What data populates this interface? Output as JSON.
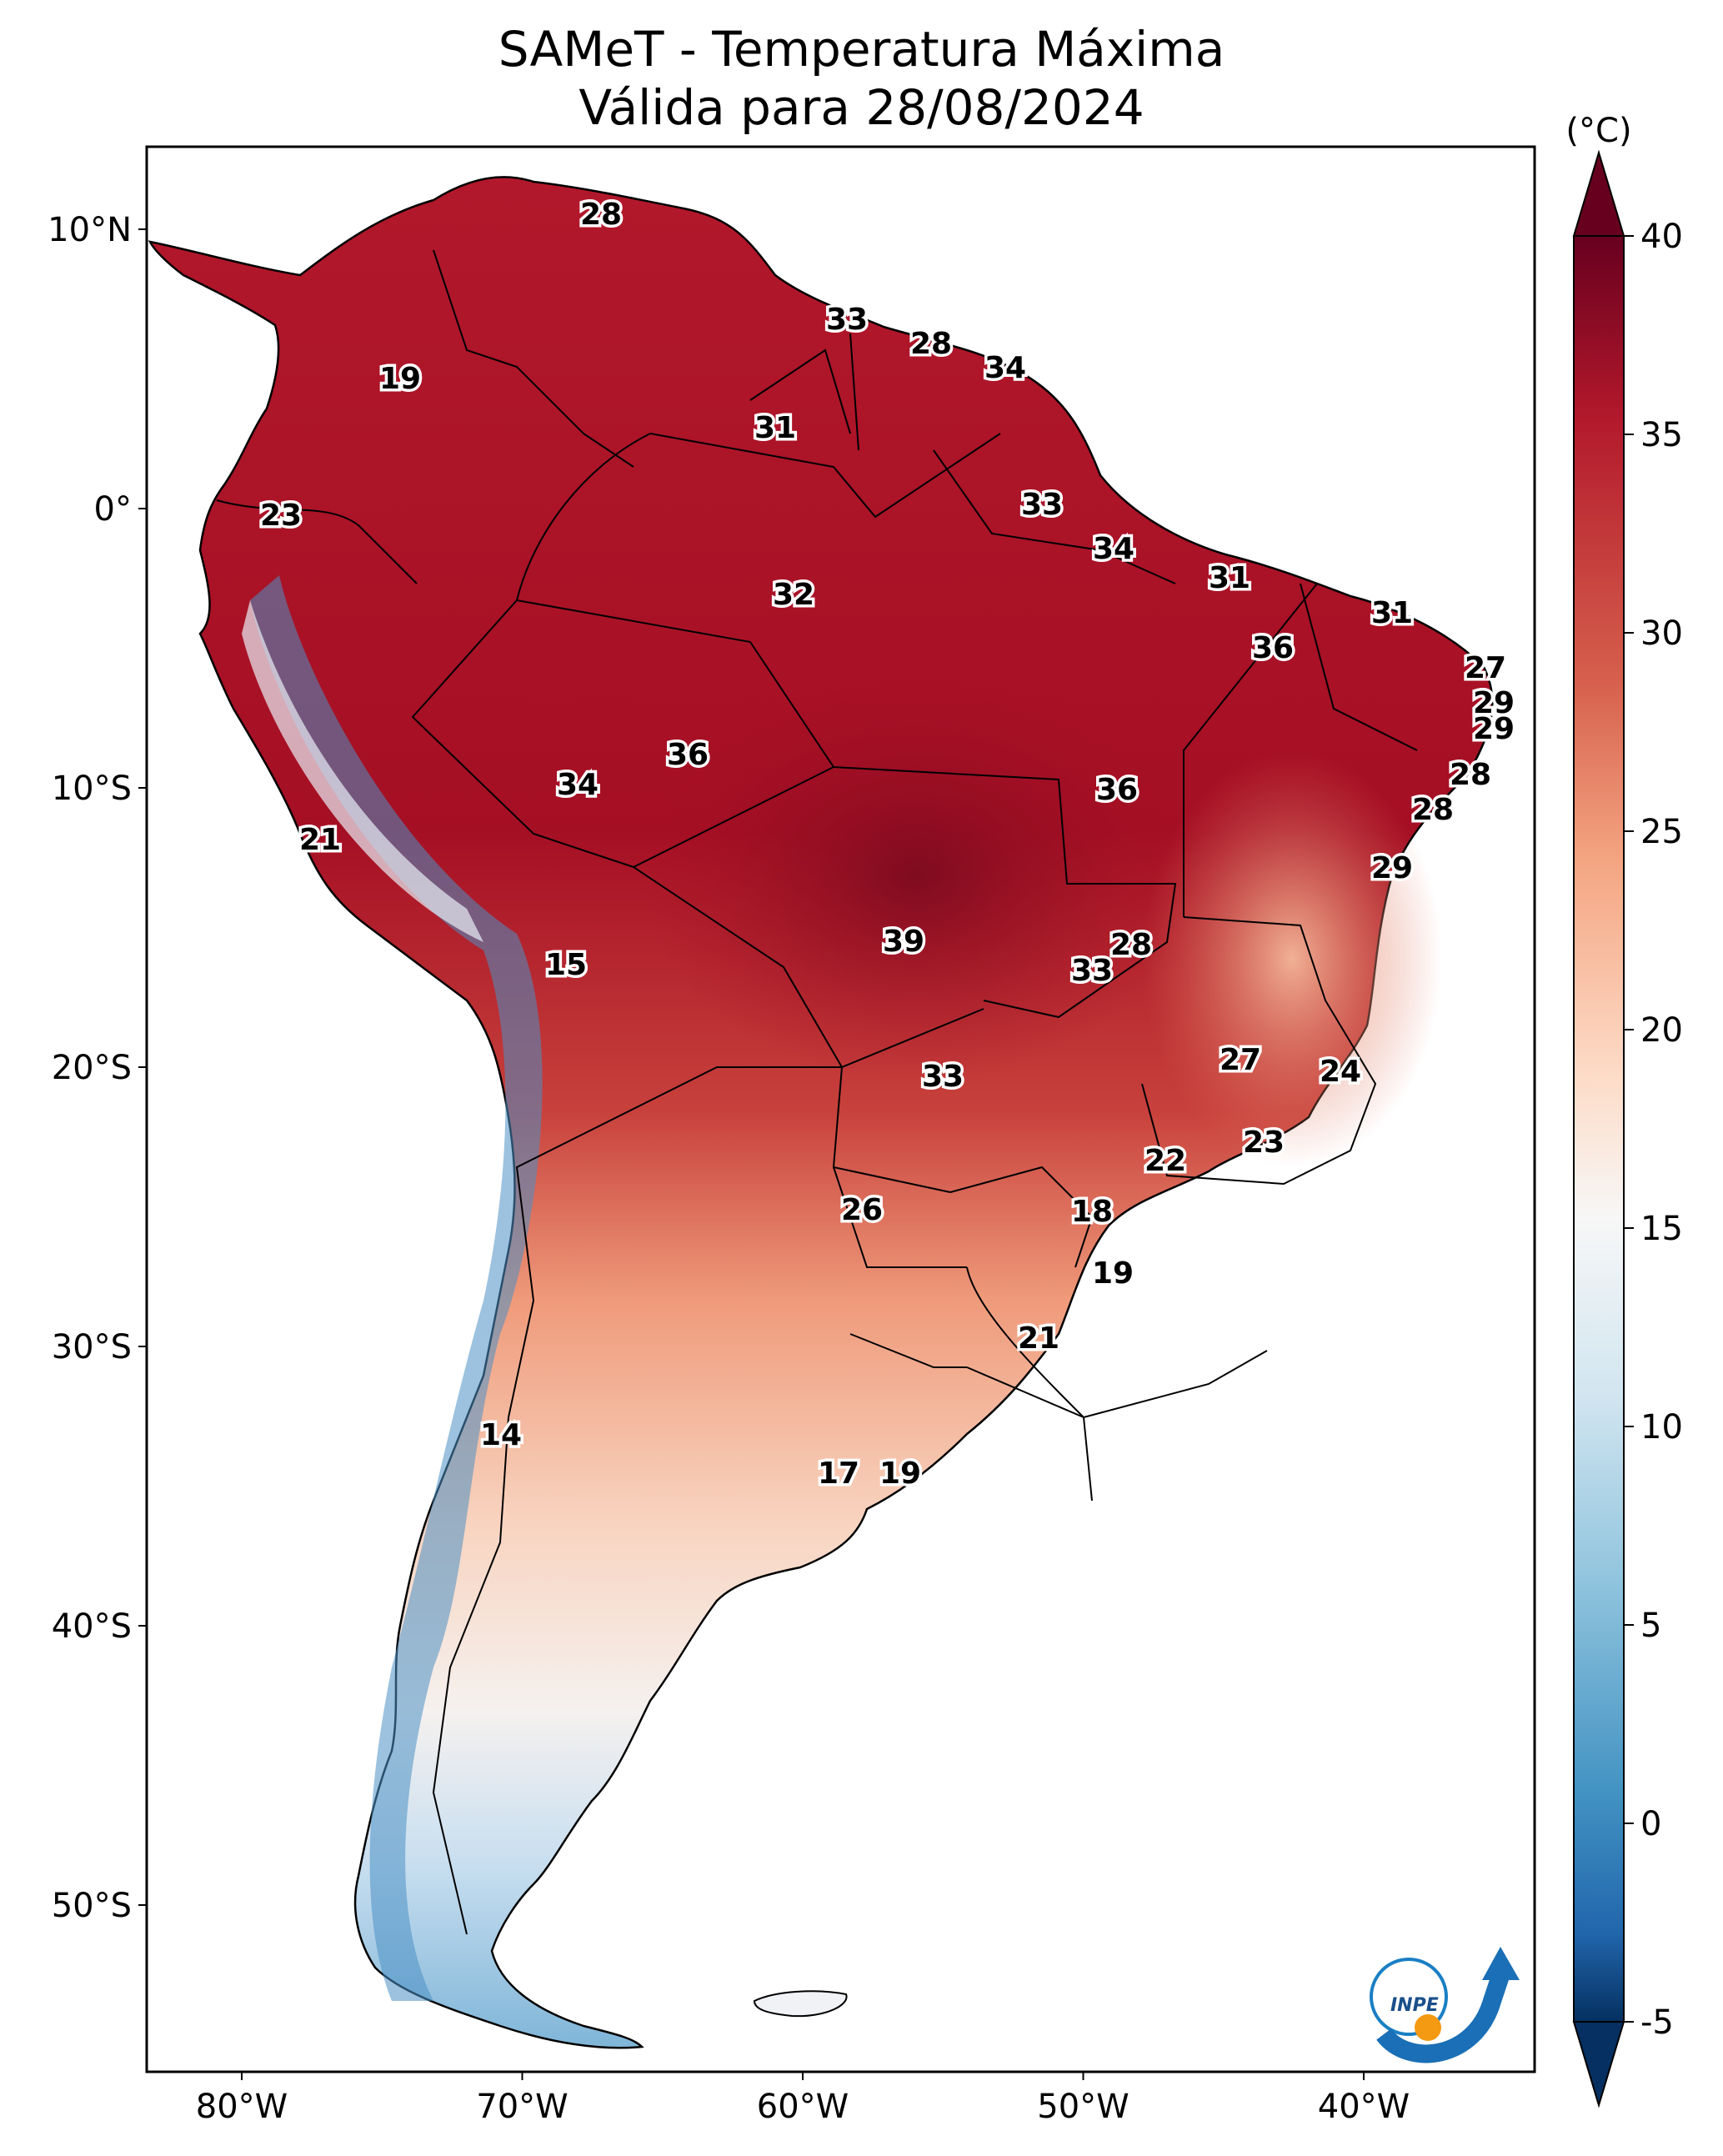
{
  "map": {
    "title_line1": "SAMeT - Temperatura Máxima",
    "title_line2": "Válida para 28/08/2024",
    "colorbar_unit": "(°C)",
    "colorbar_ticks": [
      "40",
      "35",
      "30",
      "25",
      "20",
      "15",
      "10",
      "5",
      "0",
      "-5"
    ],
    "lat_labels": [
      "10°N",
      "0°",
      "10°S",
      "20°S",
      "30°S",
      "40°S",
      "50°S"
    ],
    "lon_labels": [
      "80°W",
      "70°W",
      "60°W",
      "50°W",
      "40°W"
    ],
    "logo_text": "INPE",
    "colorscale": "RdBu_r",
    "value_labels": [
      "28",
      "33",
      "28",
      "34",
      "19",
      "31",
      "23",
      "33",
      "34",
      "32",
      "31",
      "31",
      "36",
      "27",
      "29",
      "29",
      "36",
      "34",
      "36",
      "28",
      "21",
      "28",
      "29",
      "39",
      "28",
      "15",
      "33",
      "27",
      "24",
      "33",
      "23",
      "22",
      "26",
      "18",
      "19",
      "21",
      "14",
      "17",
      "19"
    ]
  }
}
